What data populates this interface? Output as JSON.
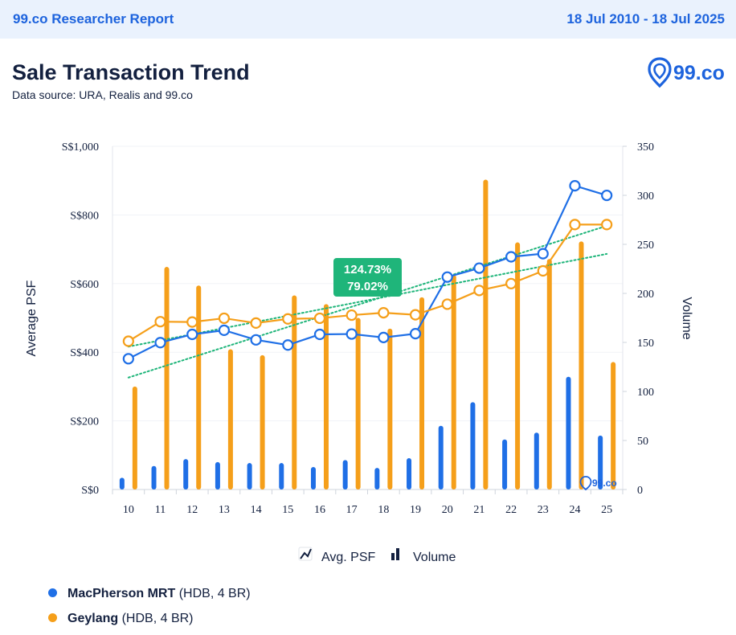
{
  "header": {
    "brand": "99.co Researcher Report",
    "date_range": "18 Jul 2010 - 18 Jul 2025"
  },
  "title": "Sale Transaction Trend",
  "subtitle": "Data source: URA, Realis and 99.co",
  "logo_text": "99.co",
  "colors": {
    "blue": "#1f6fe6",
    "orange": "#f59f1a",
    "green": "#1fb57a",
    "navy": "#13203f"
  },
  "chart_data": {
    "type": "bar",
    "categories": [
      "10",
      "11",
      "12",
      "13",
      "14",
      "15",
      "16",
      "17",
      "18",
      "19",
      "20",
      "21",
      "22",
      "23",
      "24",
      "25"
    ],
    "ylabel_left": "Average PSF",
    "ylabel_right": "Volume",
    "ylim_left": [
      0,
      1000
    ],
    "ylim_right": [
      0,
      350
    ],
    "left_ticks": [
      {
        "value": 0,
        "label": "S$0"
      },
      {
        "value": 200,
        "label": "S$200"
      },
      {
        "value": 400,
        "label": "S$400"
      },
      {
        "value": 600,
        "label": "S$600"
      },
      {
        "value": 800,
        "label": "S$800"
      },
      {
        "value": 1000,
        "label": "S$1,000"
      }
    ],
    "right_ticks": [
      {
        "value": 0,
        "label": "0"
      },
      {
        "value": 50,
        "label": "50"
      },
      {
        "value": 100,
        "label": "100"
      },
      {
        "value": 150,
        "label": "150"
      },
      {
        "value": 200,
        "label": "200"
      },
      {
        "value": 250,
        "label": "250"
      },
      {
        "value": 300,
        "label": "300"
      },
      {
        "value": 350,
        "label": "350"
      }
    ],
    "series": [
      {
        "name": "MacPherson MRT",
        "color": "#1f6fe6",
        "psf": [
          381,
          428,
          452,
          464,
          436,
          421,
          452,
          453,
          443,
          454,
          619,
          645,
          678,
          687,
          885,
          857
        ],
        "volume": [
          12,
          24,
          31,
          28,
          27,
          27,
          23,
          30,
          22,
          32,
          65,
          89,
          51,
          58,
          115,
          55
        ]
      },
      {
        "name": "Geylang",
        "color": "#f59f1a",
        "psf": [
          432,
          489,
          488,
          499,
          485,
          497,
          499,
          508,
          515,
          509,
          540,
          580,
          600,
          637,
          772,
          772
        ],
        "volume": [
          105,
          227,
          208,
          143,
          137,
          198,
          189,
          175,
          164,
          196,
          219,
          316,
          252,
          235,
          253,
          130
        ]
      }
    ],
    "trend_labels": [
      "124.73%",
      "79.02%"
    ],
    "chart_legend": [
      {
        "icon": "line-chart-icon",
        "label": "Avg. PSF"
      },
      {
        "icon": "bar-chart-icon",
        "label": "Volume"
      }
    ],
    "watermark": "99.co"
  },
  "legend": [
    {
      "name": "MacPherson MRT",
      "detail": "(HDB, 4 BR)",
      "color": "#1f6fe6"
    },
    {
      "name": "Geylang",
      "detail": "(HDB, 4 BR)",
      "color": "#f59f1a"
    }
  ]
}
